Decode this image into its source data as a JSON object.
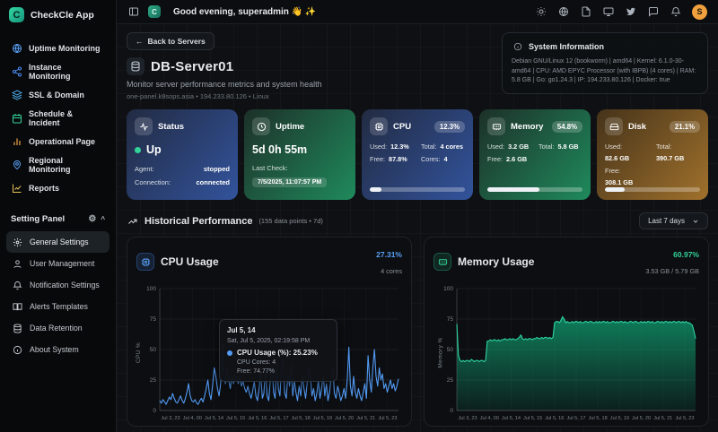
{
  "app": {
    "name": "CheckCle App",
    "greeting": "Good evening, superadmin 👋 ✨",
    "avatar_initial": "S",
    "accent_teal": "#34d6a4"
  },
  "icons": {
    "back_arrow": "←",
    "gear": "⚙",
    "chevron_up": "⌃"
  },
  "sidebar": {
    "items": [
      {
        "label": "Uptime Monitoring",
        "icon": "globe-icon",
        "color": "#5aa2f7"
      },
      {
        "label": "Instance Monitoring",
        "icon": "nodes-icon",
        "color": "#4d8df7"
      },
      {
        "label": "SSL & Domain",
        "icon": "layers-icon",
        "color": "#4aa8e8"
      },
      {
        "label": "Schedule & Incident",
        "icon": "calendar-icon",
        "color": "#34d399"
      },
      {
        "label": "Operational Page",
        "icon": "bar-chart-icon",
        "color": "#f0a44a"
      },
      {
        "label": "Regional Monitoring",
        "icon": "map-pin-icon",
        "color": "#5aa2f7"
      },
      {
        "label": "Reports",
        "icon": "report-icon",
        "color": "#e7c35a"
      }
    ],
    "settings": {
      "label": "Setting Panel",
      "active": "General Settings",
      "items": [
        "General Settings",
        "User Management",
        "Notification Settings",
        "Alerts Templates",
        "Data Retention",
        "About System"
      ]
    }
  },
  "page": {
    "back_label": "Back to Servers",
    "title": "DB-Server01",
    "subtitle": "Monitor server performance metrics and system health",
    "meta": "one-panel.k8sops.asia • 194.233.80.126 • Linux",
    "system_info": {
      "title": "System Information",
      "text": "Debian GNU/Linux 12 (bookworm) | amd64 | Kernel: 6.1.0-30-amd64 | CPU: AMD EPYC Processor (with IBPB) (4 cores) | RAM: 5.8 GB | Go: go1.24.3 | IP: 194.233.80.126 | Docker: true"
    }
  },
  "cards": {
    "status": {
      "title": "Status",
      "state": "Up",
      "state_color": "#34d399",
      "agent_label": "Agent:",
      "agent_value": "stopped",
      "connection_label": "Connection:",
      "connection_value": "connected"
    },
    "uptime": {
      "title": "Uptime",
      "value": "5d 0h 55m",
      "last_check_label": "Last Check:",
      "last_check_value": "7/5/2025, 11:07:57 PM"
    },
    "cpu": {
      "title": "CPU",
      "badge": "12.3%",
      "percent": 12.3,
      "used_label": "Used:",
      "used": "12.3%",
      "total_label": "Total:",
      "total": "4 cores",
      "free_label": "Free:",
      "free": "87.8%",
      "cores_label": "Cores:",
      "cores": "4"
    },
    "memory": {
      "title": "Memory",
      "badge": "54.8%",
      "percent": 54.8,
      "used_label": "Used:",
      "used": "3.2 GB",
      "total_label": "Total:",
      "total": "5.8 GB",
      "free_label": "Free:",
      "free": "2.6 GB"
    },
    "disk": {
      "title": "Disk",
      "badge": "21.1%",
      "percent": 21.1,
      "used_label": "Used:",
      "used": "82.6 GB",
      "total_label": "Total:",
      "total": "390.7 GB",
      "free_label": "Free:",
      "free": "308.1 GB"
    }
  },
  "history": {
    "title": "Historical Performance",
    "meta": "(155 data points • 7d)",
    "range_label": "Last 7 days"
  },
  "chart_data": [
    {
      "type": "line",
      "title": "CPU Usage",
      "stat": "27.31%",
      "substat": "4 cores",
      "ylabel": "CPU %",
      "ylim": [
        0,
        100
      ],
      "yticks": [
        0,
        25,
        50,
        75,
        100
      ],
      "grid": true,
      "legend_position": "none",
      "x_ticks": [
        "Jul 3, 23",
        "Jul 4, 00",
        "Jul 5, 14",
        "Jul 5, 15",
        "Jul 5, 16",
        "Jul 5, 17",
        "Jul 5, 18",
        "Jul 5, 19",
        "Jul 5, 20",
        "Jul 5, 21",
        "Jul 5, 23"
      ],
      "series": [
        {
          "name": "CPU Usage (%)",
          "color": "#539bf5",
          "values": [
            8,
            6,
            9,
            7,
            5,
            8,
            11,
            9,
            14,
            10,
            7,
            6,
            9,
            12,
            8,
            6,
            10,
            15,
            22,
            12,
            8,
            7,
            9,
            6,
            5,
            8,
            10,
            7,
            12,
            18,
            25,
            14,
            9,
            21,
            35,
            28,
            18,
            12,
            22,
            55,
            30,
            22,
            35,
            25,
            18,
            28,
            22,
            30,
            26,
            22,
            28,
            20,
            24,
            18,
            15,
            20,
            14,
            10,
            16,
            24,
            12,
            8,
            18,
            30,
            10,
            14,
            35,
            12,
            8,
            25,
            38,
            15,
            10,
            40,
            18,
            12,
            35,
            42,
            14,
            10,
            30,
            20,
            38,
            12,
            25,
            15,
            8,
            20,
            12,
            30,
            18,
            10,
            22,
            35,
            28,
            12,
            18,
            8,
            14,
            25,
            10,
            18,
            30,
            12,
            22,
            8,
            15,
            28,
            35,
            14,
            10,
            20,
            15,
            8,
            12,
            18,
            10,
            25,
            52,
            20,
            12,
            28,
            15,
            10,
            18,
            12,
            8,
            15,
            22,
            10,
            45,
            25,
            15,
            35,
            50,
            28,
            20,
            35,
            25,
            30,
            18,
            22,
            15,
            20,
            25,
            18,
            22,
            16,
            20,
            26
          ]
        }
      ],
      "tooltip": {
        "title": "Jul 5, 14",
        "time": "Sat, Jul 5, 2025, 02:19:58 PM",
        "main": "CPU Usage (%): 25.23%",
        "line2": "CPU Cores: 4",
        "line3": "Free: 74.77%"
      }
    },
    {
      "type": "area",
      "title": "Memory Usage",
      "stat": "60.97%",
      "substat": "3.53 GB / 5.79 GB",
      "ylabel": "Memory %",
      "ylim": [
        0,
        100
      ],
      "yticks": [
        0,
        25,
        50,
        75,
        100
      ],
      "grid": true,
      "legend_position": "none",
      "x_ticks": [
        "Jul 3, 23",
        "Jul 4, 00",
        "Jul 5, 14",
        "Jul 5, 15",
        "Jul 5, 16",
        "Jul 5, 17",
        "Jul 5, 18",
        "Jul 5, 19",
        "Jul 5, 20",
        "Jul 5, 21",
        "Jul 5, 23"
      ],
      "series": [
        {
          "name": "Memory Usage (%)",
          "color": "#2dd4a0",
          "values": [
            71,
            45,
            41,
            40,
            41,
            40,
            41,
            41,
            40,
            42,
            41,
            40,
            41,
            41,
            40,
            41,
            41,
            40,
            41,
            57,
            57,
            58,
            57,
            58,
            58,
            57,
            58,
            57,
            58,
            58,
            59,
            58,
            58,
            59,
            58,
            59,
            58,
            58,
            59,
            60,
            62,
            59,
            58,
            59,
            58,
            59,
            59,
            58,
            59,
            59,
            60,
            59,
            59,
            60,
            59,
            60,
            60,
            59,
            60,
            59,
            60,
            72,
            73,
            73,
            72,
            74,
            77,
            75,
            72,
            73,
            72,
            72,
            73,
            72,
            73,
            73,
            72,
            73,
            72,
            72,
            73,
            73,
            72,
            73,
            73,
            72,
            72,
            73,
            72,
            73,
            72,
            73,
            73,
            72,
            73,
            72,
            72,
            73,
            73,
            72,
            73,
            72,
            73,
            73,
            72,
            73,
            72,
            72,
            73,
            73,
            72,
            73,
            73,
            72,
            72,
            73,
            72,
            73,
            72,
            73,
            73,
            72,
            73,
            72,
            72,
            73,
            73,
            72,
            73,
            72,
            73,
            73,
            72,
            73,
            72,
            73,
            73,
            72,
            73,
            73,
            72,
            73,
            72,
            73,
            72,
            72,
            71,
            70,
            65,
            59
          ]
        }
      ]
    }
  ]
}
